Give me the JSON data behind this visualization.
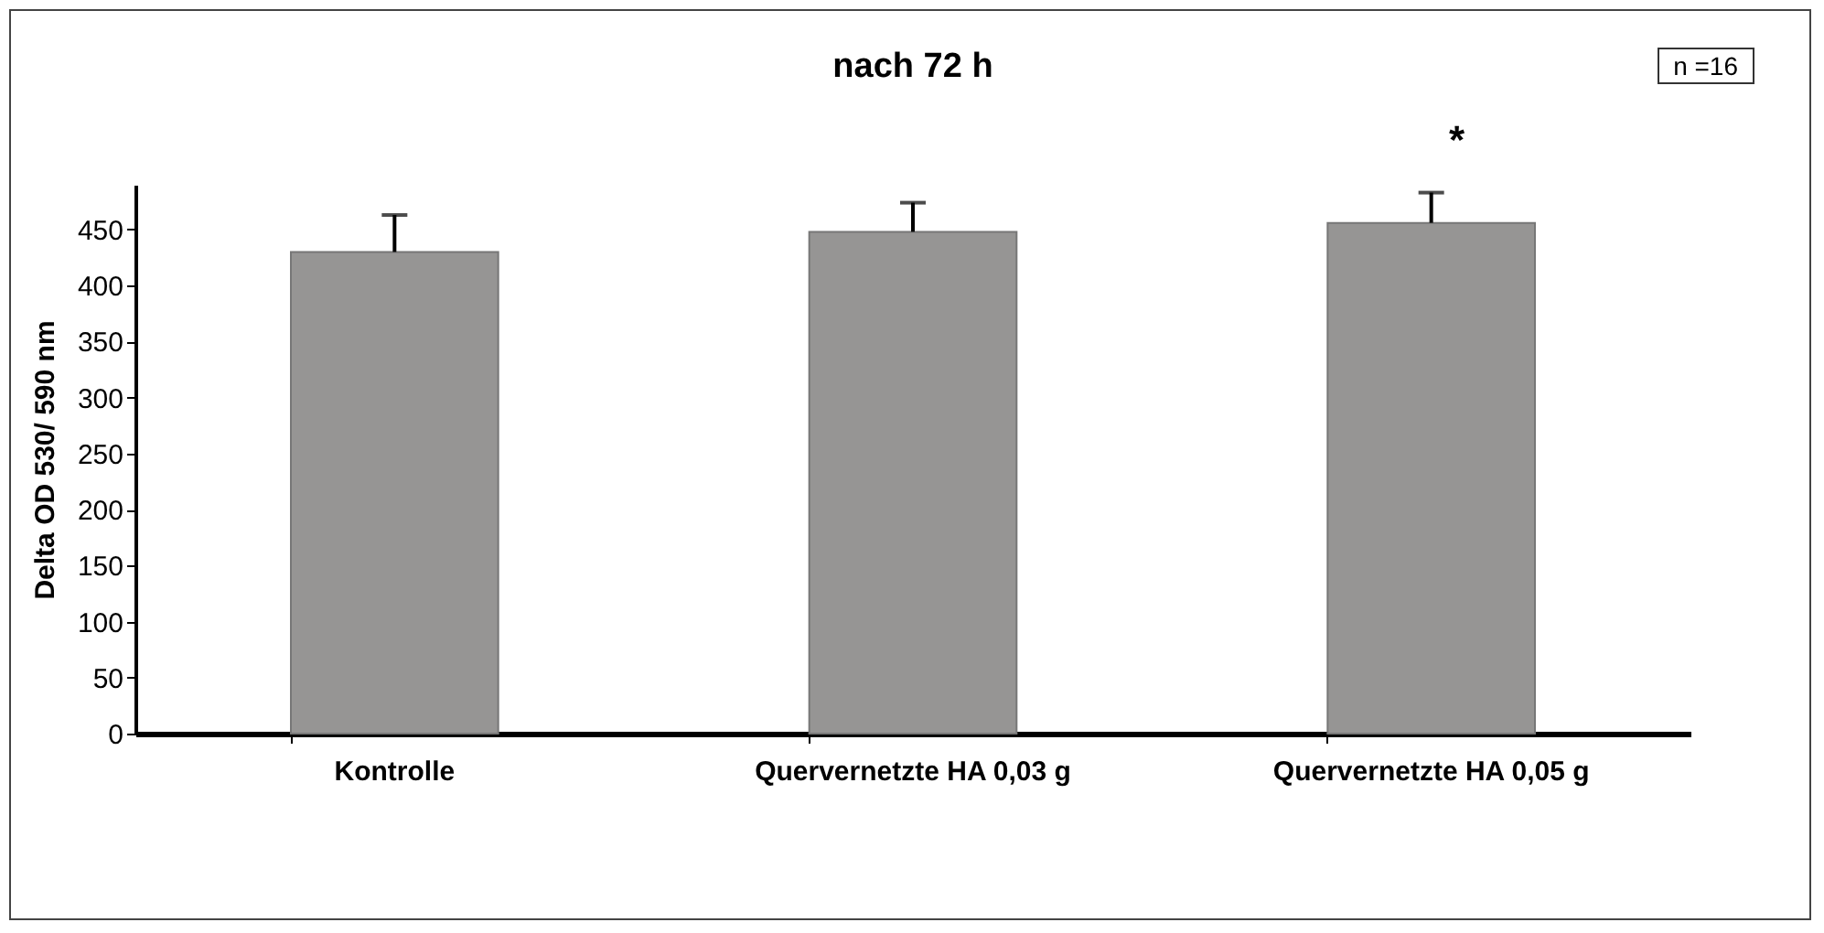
{
  "chart_data": {
    "type": "bar",
    "title": "nach 72 h",
    "ylabel": "Delta OD 530/ 590 nm",
    "categories": [
      "Kontrolle",
      "Quervernetzte HA 0,03 g",
      "Quervernetzte HA 0,05 g"
    ],
    "values": [
      430,
      448,
      456
    ],
    "color": "#969594",
    "errors": [
      [
        430,
        463
      ],
      [
        448,
        474
      ],
      [
        456,
        483
      ]
    ],
    "ylim": [
      0,
      490
    ],
    "yticks": [
      0,
      50,
      100,
      150,
      200,
      250,
      300,
      350,
      400,
      450
    ],
    "grid": false,
    "annotations": [
      "n =16",
      {
        "text": "*",
        "x": "Quervernetzte HA 0,05 g",
        "y": 456
      }
    ]
  }
}
